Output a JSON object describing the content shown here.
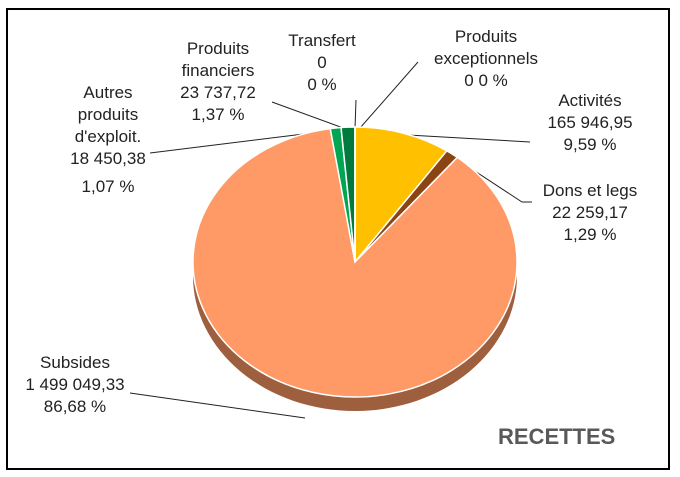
{
  "chart_data": {
    "type": "pie",
    "title": "RECETTES",
    "categories": [
      "Activités",
      "Dons et legs",
      "Subsides",
      "Autres produits d'exploit.",
      "Produits financiers",
      "Transfert",
      "Produits exceptionnels"
    ],
    "values": [
      165946.95,
      22259.17,
      1499049.33,
      18450.38,
      23737.72,
      0,
      0
    ],
    "value_labels": [
      "165 946,95",
      "22 259,17",
      "1 499 049,33",
      "18 450,38",
      "23 737,72",
      "0",
      "0"
    ],
    "percentages": [
      9.59,
      1.29,
      86.68,
      1.07,
      1.37,
      0,
      0
    ],
    "percentage_labels": [
      "9,59 %",
      "1,29 %",
      "86,68 %",
      "1,07 %",
      "1,37 %",
      "0 %",
      "0 %"
    ],
    "colors": [
      "#ffc000",
      "#8b4513",
      "#ff9966",
      "#00a651",
      "#007a3d",
      "#4472c4",
      "#a5a5a5"
    ]
  }
}
